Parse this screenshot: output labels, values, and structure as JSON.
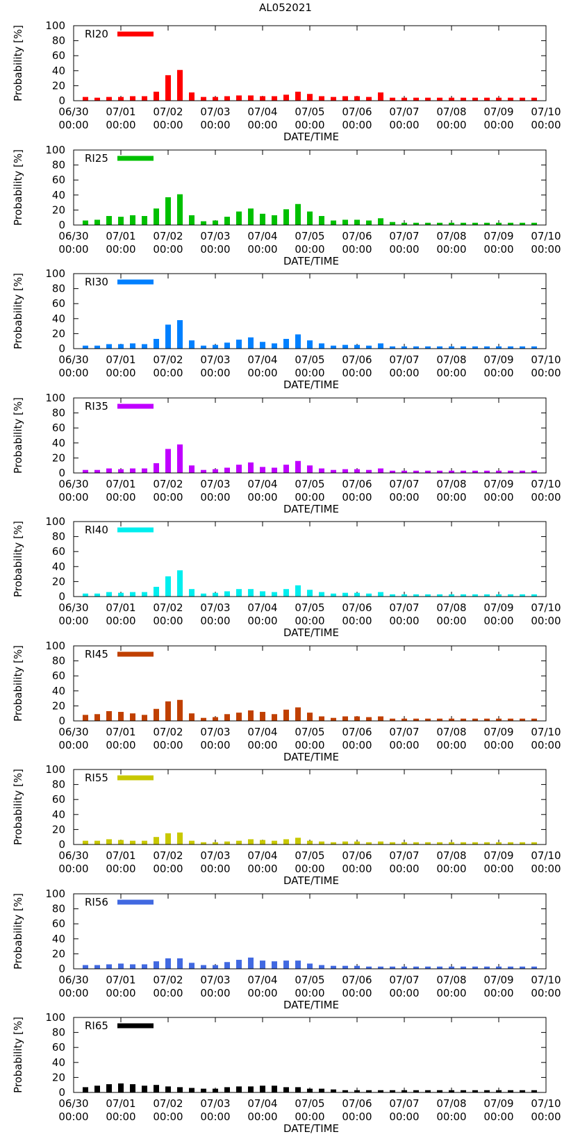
{
  "title": "AL052021",
  "panel_common": {
    "ylabel": "Probability [%]",
    "xlabel": "DATE/TIME",
    "ylim": [
      0,
      100
    ],
    "yticks": [
      0,
      20,
      40,
      60,
      80,
      100
    ],
    "xrange_hours": [
      0,
      240
    ],
    "bar_times_hours": [
      6,
      12,
      18,
      24,
      30,
      36,
      42,
      48,
      54,
      60,
      66,
      72,
      78,
      84,
      90,
      96,
      102,
      108,
      114,
      120,
      126,
      132,
      138,
      144,
      150,
      156,
      162,
      168,
      174,
      180,
      186,
      192,
      198,
      204,
      210,
      216,
      222,
      228,
      234
    ],
    "xticks": [
      {
        "hour": 0,
        "date": "06/30",
        "time": "00:00"
      },
      {
        "hour": 24,
        "date": "07/01",
        "time": "00:00"
      },
      {
        "hour": 48,
        "date": "07/02",
        "time": "00:00"
      },
      {
        "hour": 72,
        "date": "07/03",
        "time": "00:00"
      },
      {
        "hour": 96,
        "date": "07/04",
        "time": "00:00"
      },
      {
        "hour": 120,
        "date": "07/05",
        "time": "00:00"
      },
      {
        "hour": 144,
        "date": "07/06",
        "time": "00:00"
      },
      {
        "hour": 168,
        "date": "07/07",
        "time": "00:00"
      },
      {
        "hour": 192,
        "date": "07/08",
        "time": "00:00"
      },
      {
        "hour": 216,
        "date": "07/09",
        "time": "00:00"
      },
      {
        "hour": 240,
        "date": "07/10",
        "time": "00:00"
      }
    ]
  },
  "chart_data": [
    {
      "type": "bar",
      "legend": "RI20",
      "color": "#ff0000",
      "values": [
        5,
        4,
        5,
        5,
        6,
        6,
        12,
        34,
        41,
        11,
        5,
        5,
        6,
        7,
        7,
        6,
        6,
        8,
        12,
        9,
        6,
        5,
        6,
        6,
        5,
        11,
        4,
        4,
        4,
        4,
        4,
        4,
        4,
        4,
        4,
        4,
        4,
        4,
        4
      ]
    },
    {
      "type": "bar",
      "legend": "RI25",
      "color": "#00c000",
      "values": [
        6,
        7,
        12,
        11,
        13,
        12,
        22,
        37,
        41,
        13,
        5,
        6,
        11,
        18,
        22,
        15,
        13,
        21,
        28,
        18,
        12,
        6,
        7,
        7,
        6,
        9,
        4,
        3,
        3,
        3,
        3,
        3,
        3,
        3,
        3,
        3,
        3,
        3,
        3
      ]
    },
    {
      "type": "bar",
      "legend": "RI30",
      "color": "#0080ff",
      "values": [
        4,
        4,
        6,
        6,
        7,
        6,
        13,
        32,
        38,
        11,
        4,
        5,
        8,
        12,
        15,
        9,
        7,
        13,
        19,
        11,
        7,
        4,
        5,
        5,
        4,
        7,
        3,
        3,
        3,
        3,
        3,
        3,
        3,
        3,
        3,
        3,
        3,
        3,
        3
      ]
    },
    {
      "type": "bar",
      "legend": "RI35",
      "color": "#c000ff",
      "values": [
        4,
        4,
        6,
        5,
        6,
        6,
        13,
        32,
        38,
        10,
        4,
        5,
        7,
        11,
        14,
        8,
        7,
        11,
        16,
        10,
        6,
        4,
        5,
        5,
        4,
        6,
        3,
        3,
        3,
        3,
        3,
        3,
        3,
        3,
        3,
        3,
        3,
        3,
        3
      ]
    },
    {
      "type": "bar",
      "legend": "RI40",
      "color": "#00eeee",
      "values": [
        4,
        4,
        6,
        5,
        6,
        6,
        13,
        27,
        35,
        10,
        4,
        5,
        7,
        10,
        10,
        7,
        6,
        10,
        15,
        9,
        6,
        4,
        5,
        5,
        4,
        6,
        3,
        3,
        3,
        3,
        3,
        3,
        3,
        3,
        3,
        3,
        3,
        3,
        3
      ]
    },
    {
      "type": "bar",
      "legend": "RI45",
      "color": "#c04000",
      "values": [
        8,
        9,
        13,
        12,
        10,
        8,
        16,
        26,
        28,
        10,
        4,
        5,
        9,
        11,
        14,
        12,
        9,
        15,
        18,
        11,
        6,
        4,
        6,
        6,
        5,
        6,
        3,
        3,
        3,
        3,
        3,
        3,
        3,
        3,
        3,
        3,
        3,
        3,
        3
      ]
    },
    {
      "type": "bar",
      "legend": "RI55",
      "color": "#c8c800",
      "values": [
        5,
        5,
        7,
        6,
        5,
        5,
        10,
        15,
        16,
        5,
        3,
        3,
        4,
        5,
        7,
        6,
        5,
        7,
        9,
        5,
        4,
        3,
        4,
        4,
        3,
        4,
        3,
        3,
        3,
        3,
        3,
        3,
        3,
        3,
        3,
        3,
        3,
        3,
        3
      ]
    },
    {
      "type": "bar",
      "legend": "RI56",
      "color": "#4169e1",
      "values": [
        5,
        5,
        6,
        7,
        6,
        6,
        10,
        14,
        14,
        8,
        5,
        5,
        9,
        12,
        15,
        11,
        10,
        11,
        11,
        7,
        5,
        4,
        4,
        4,
        3,
        3,
        3,
        3,
        3,
        3,
        3,
        3,
        3,
        3,
        3,
        3,
        3,
        3,
        3
      ]
    },
    {
      "type": "bar",
      "legend": "RI65",
      "color": "#000000",
      "values": [
        7,
        9,
        11,
        12,
        11,
        9,
        10,
        8,
        7,
        6,
        5,
        5,
        7,
        8,
        8,
        9,
        9,
        7,
        7,
        5,
        5,
        4,
        3,
        3,
        3,
        3,
        3,
        3,
        3,
        3,
        3,
        3,
        3,
        3,
        3,
        3,
        3,
        3,
        3
      ]
    }
  ]
}
